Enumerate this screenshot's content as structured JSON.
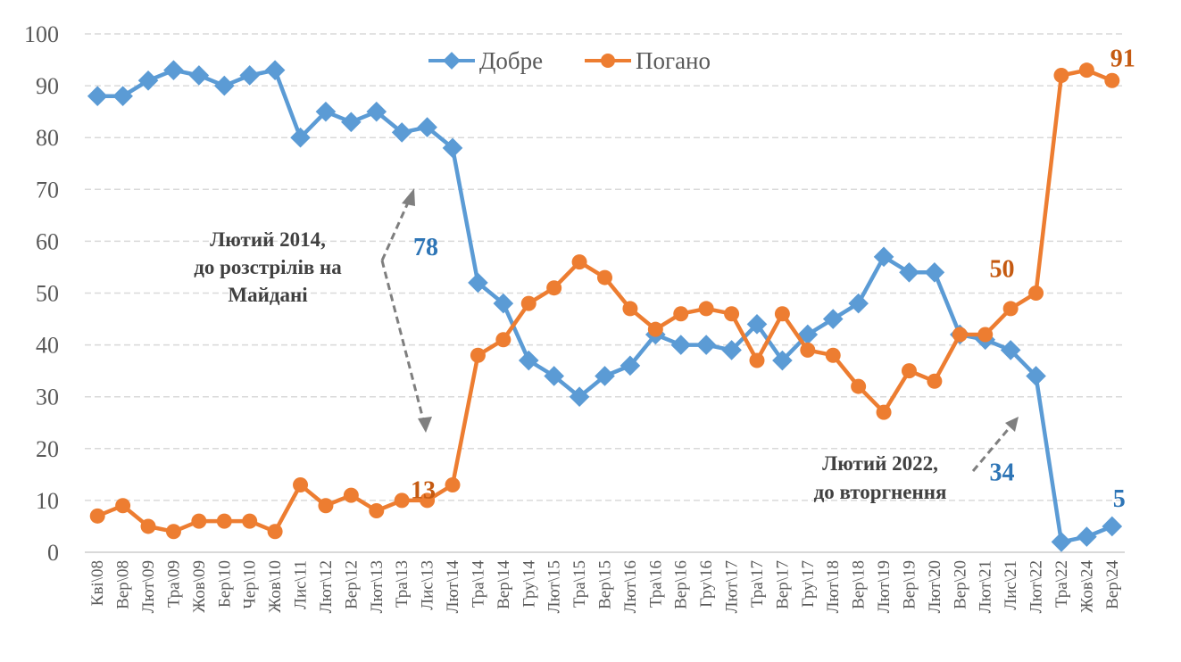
{
  "chart_data": {
    "type": "line",
    "title": "",
    "xlabel": "",
    "ylabel": "",
    "ylim": [
      0,
      100
    ],
    "yticks": [
      0,
      10,
      20,
      30,
      40,
      50,
      60,
      70,
      80,
      90,
      100
    ],
    "grid": true,
    "legend_position": "top-center",
    "categories": [
      "Кві\\08",
      "Вер\\08",
      "Лют\\09",
      "Тра\\09",
      "Жов\\09",
      "Бер\\10",
      "Чер\\10",
      "Жов\\10",
      "Лис\\11",
      "Лют\\12",
      "Вер\\12",
      "Лют\\13",
      "Тра\\13",
      "Лис\\13",
      "Лют\\14",
      "Тра\\14",
      "Вер\\14",
      "Гру\\14",
      "Лют\\15",
      "Тра\\15",
      "Вер\\15",
      "Лют\\16",
      "Тра\\16",
      "Вер\\16",
      "Гру\\16",
      "Лют\\17",
      "Тра\\17",
      "Вер\\17",
      "Гру\\17",
      "Лют\\18",
      "Вер\\18",
      "Лют\\19",
      "Вер\\19",
      "Лют\\20",
      "Вер\\20",
      "Лют\\21",
      "Лис\\21",
      "Лют\\22",
      "Тра\\22",
      "Жов\\24",
      "Вер\\24"
    ],
    "series": [
      {
        "name": "Добре",
        "color": "#5b9bd5",
        "label_color": "#2e75b6",
        "marker": "diamond",
        "values": [
          88,
          88,
          91,
          93,
          92,
          90,
          92,
          93,
          80,
          85,
          83,
          85,
          81,
          82,
          78,
          52,
          48,
          37,
          34,
          30,
          34,
          36,
          42,
          40,
          40,
          39,
          44,
          37,
          42,
          45,
          48,
          57,
          54,
          54,
          42,
          41,
          39,
          34,
          2,
          3,
          5
        ]
      },
      {
        "name": "Погано",
        "color": "#ed7d31",
        "label_color": "#c55a11",
        "marker": "circle",
        "values": [
          7,
          9,
          5,
          4,
          6,
          6,
          6,
          4,
          13,
          9,
          11,
          8,
          10,
          10,
          13,
          38,
          41,
          48,
          51,
          56,
          53,
          47,
          43,
          46,
          47,
          46,
          37,
          46,
          39,
          38,
          32,
          27,
          35,
          33,
          42,
          42,
          47,
          50,
          92,
          93,
          91
        ]
      }
    ],
    "data_labels": [
      {
        "series": "Добре",
        "category": "Лют\\14",
        "text": "78"
      },
      {
        "series": "Добре",
        "category": "Лют\\22",
        "text": "34"
      },
      {
        "series": "Добре",
        "category": "Вер\\24",
        "text": "5"
      },
      {
        "series": "Погано",
        "category": "Лют\\14",
        "text": "13"
      },
      {
        "series": "Погано",
        "category": "Лют\\22",
        "text": "50"
      },
      {
        "series": "Погано",
        "category": "Вер\\24",
        "text": "91"
      }
    ],
    "annotations": [
      {
        "lines": [
          "Лютий 2014,",
          "до розстрілів на",
          "Майдані"
        ]
      },
      {
        "lines": [
          "Лютий 2022,",
          "до вторгнення"
        ]
      }
    ]
  }
}
